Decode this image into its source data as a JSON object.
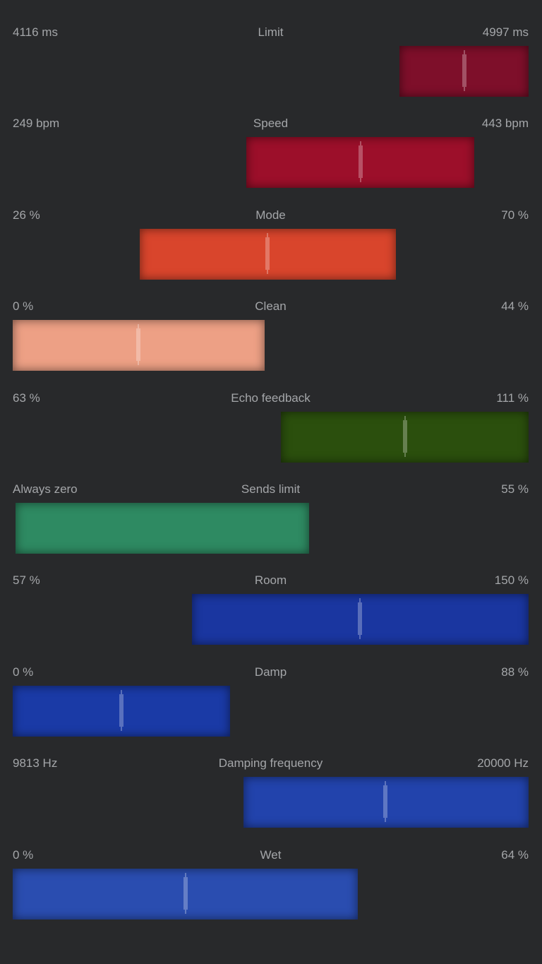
{
  "sliders": [
    {
      "title": "Limit",
      "min_label": "4116 ms",
      "max_label": "4997 ms",
      "range_start": 0.75,
      "range_end": 1.0,
      "thumb": 0.875,
      "color": "#7e0f2a"
    },
    {
      "title": "Speed",
      "min_label": "249 bpm",
      "max_label": "443 bpm",
      "range_start": 0.453,
      "range_end": 0.895,
      "thumb": 0.674,
      "color": "#9c0f2a"
    },
    {
      "title": "Mode",
      "min_label": "26 %",
      "max_label": "70 %",
      "range_start": 0.246,
      "range_end": 0.743,
      "thumb": 0.494,
      "color": "#d9452c"
    },
    {
      "title": "Clean",
      "min_label": "0 %",
      "max_label": "44 %",
      "range_start": 0.0,
      "range_end": 0.489,
      "thumb": 0.244,
      "color": "#eda085"
    },
    {
      "title": "Echo feedback",
      "min_label": "63 %",
      "max_label": "111 %",
      "range_start": 0.52,
      "range_end": 1.0,
      "thumb": 0.76,
      "color": "#2b4f0d"
    },
    {
      "title": "Sends limit",
      "min_label": "Always zero",
      "max_label": "55 %",
      "range_start": 0.005,
      "range_end": 0.575,
      "thumb": null,
      "color": "#2e8a62"
    },
    {
      "title": "Room",
      "min_label": "57 %",
      "max_label": "150 %",
      "range_start": 0.347,
      "range_end": 1.0,
      "thumb": 0.673,
      "color": "#1a36a0"
    },
    {
      "title": "Damp",
      "min_label": "0 %",
      "max_label": "88 %",
      "range_start": 0.0,
      "range_end": 0.421,
      "thumb": 0.21,
      "color": "#1a3aa6"
    },
    {
      "title": "Damping frequency",
      "min_label": "9813 Hz",
      "max_label": "20000 Hz",
      "range_start": 0.447,
      "range_end": 1.0,
      "thumb": 0.722,
      "color": "#2243ac"
    },
    {
      "title": "Wet",
      "min_label": "0 %",
      "max_label": "64 %",
      "range_start": 0.0,
      "range_end": 0.669,
      "thumb": 0.335,
      "color": "#2a4db0"
    }
  ]
}
